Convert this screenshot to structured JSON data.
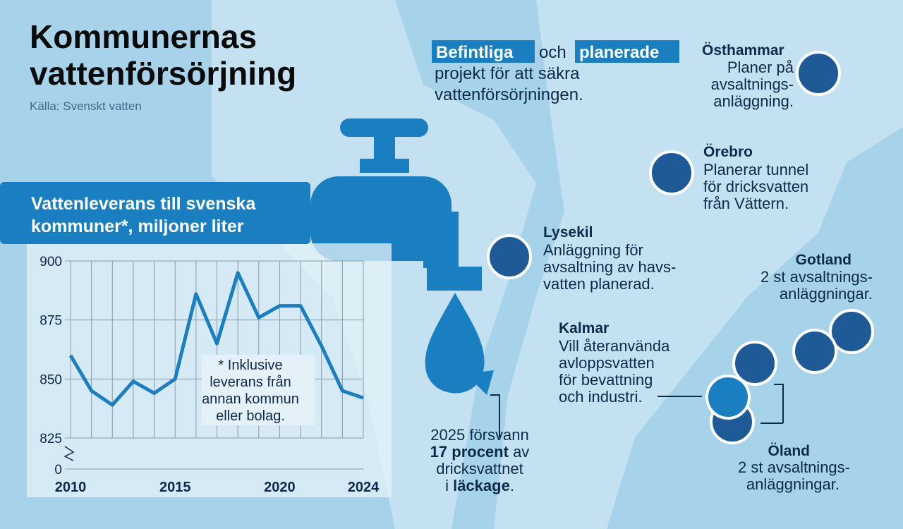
{
  "header": {
    "title": [
      "Kommunernas",
      "vattenförsörjning"
    ],
    "source": "Källa: Svenskt vatten"
  },
  "intro": {
    "existing": "Befintliga",
    "and": "och",
    "planned": "planerade",
    "rest": [
      "projekt för att säkra",
      "vattenförsörjningen."
    ]
  },
  "places": [
    {
      "name": "Östhammar",
      "lines": [
        "Planer på",
        "avsaltnings-",
        "anläggning."
      ]
    },
    {
      "name": "Örebro",
      "lines": [
        "Planerar tunnel",
        "för dricksvatten",
        "från Vättern."
      ]
    },
    {
      "name": "Lysekil",
      "lines": [
        "Anläggning för",
        "avsaltning av havs-",
        "vatten planerad."
      ]
    },
    {
      "name": "Gotland",
      "lines": [
        "2 st avsaltnings-",
        "anläggningar."
      ]
    },
    {
      "name": "Kalmar",
      "lines": [
        "Vill återanvända",
        "avloppsvatten",
        "för bevattning",
        "och industri."
      ]
    },
    {
      "name": "Öland",
      "lines": [
        "2 st avsaltnings-",
        "anläggningar."
      ]
    }
  ],
  "leak_note": [
    "2025 försvann",
    "17 procent",
    "av",
    "dricksvattnet",
    "i",
    "läckage",
    "."
  ],
  "chart_data": {
    "type": "line",
    "title": [
      "Vattenleverans till svenska",
      "kommuner*, miljoner liter"
    ],
    "annotation": [
      "* Inklusive",
      "leverans från",
      "annan kommun",
      "eller bolag."
    ],
    "x": [
      2010,
      2011,
      2012,
      2013,
      2014,
      2015,
      2016,
      2017,
      2018,
      2019,
      2020,
      2021,
      2022,
      2023,
      2024
    ],
    "values": [
      860,
      845,
      839,
      849,
      844,
      850,
      886,
      865,
      895,
      876,
      881,
      881,
      864,
      845,
      842
    ],
    "color": "#1a7fc1",
    "xlim": [
      2010,
      2024
    ],
    "xticks": [
      2010,
      2015,
      2020,
      2024
    ],
    "ylim": [
      825,
      900
    ],
    "yticks": [
      0,
      825,
      850,
      875,
      900
    ],
    "axis_break": true,
    "grid": true
  }
}
